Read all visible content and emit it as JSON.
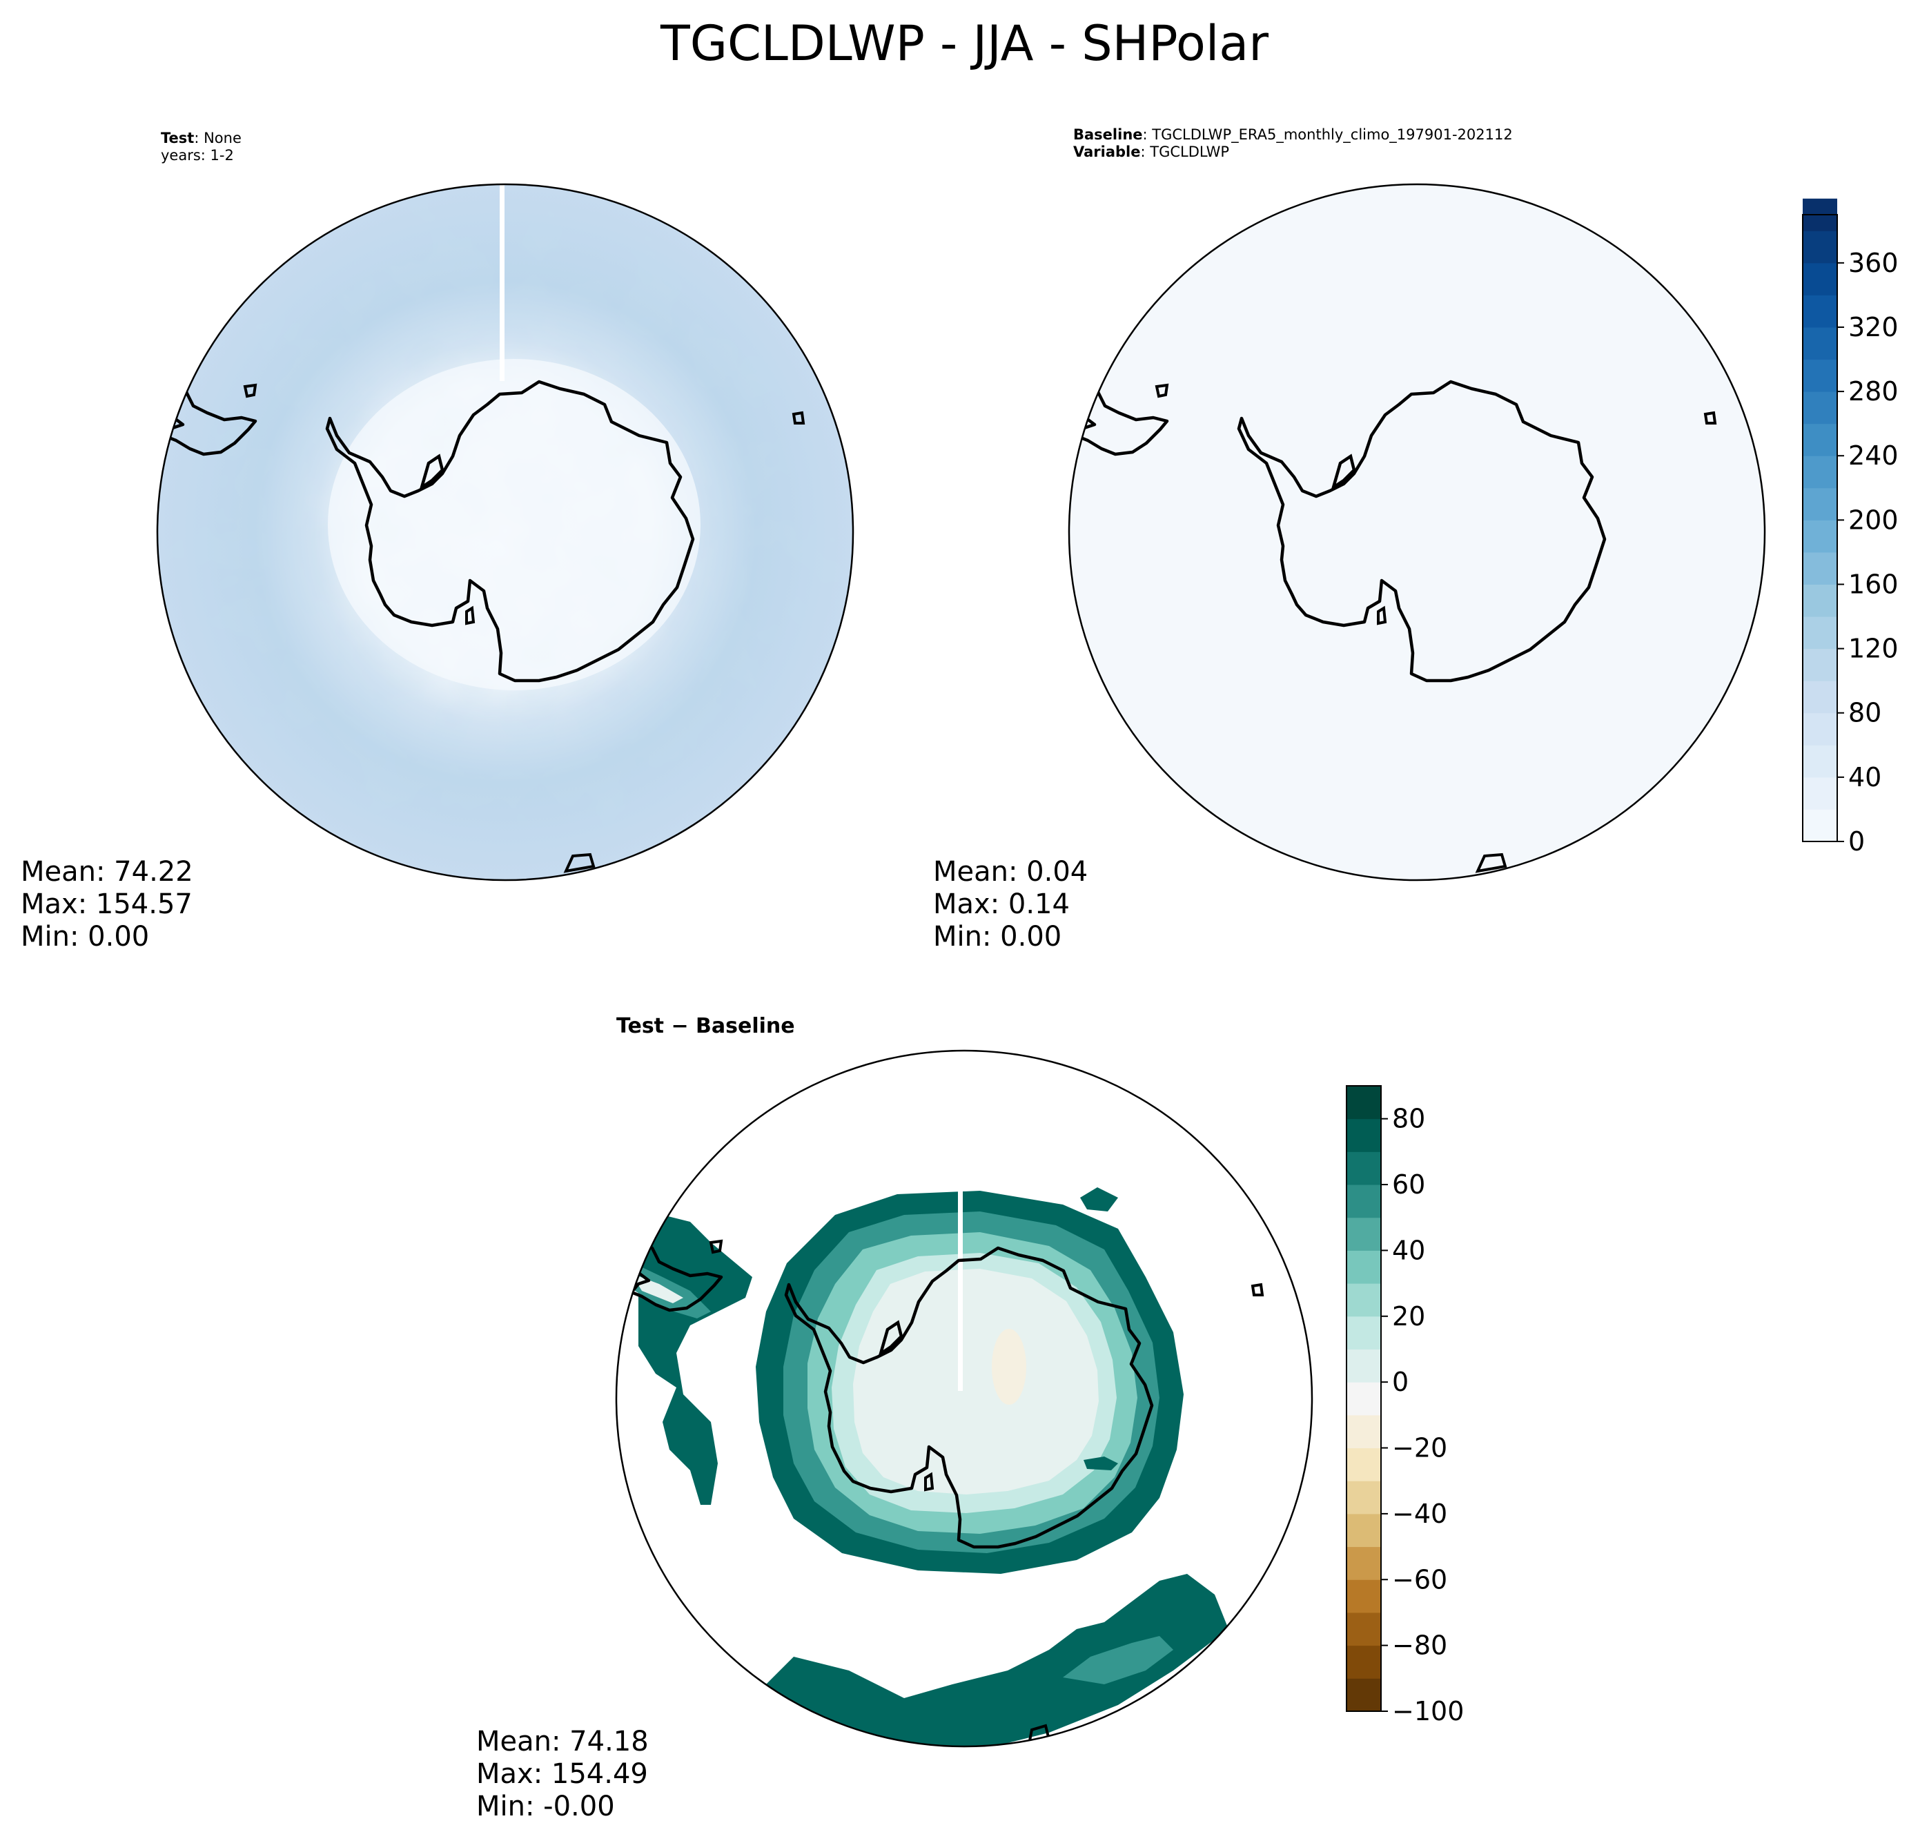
{
  "title": "TGCLDLWP - JJA - SHPolar",
  "panels": {
    "test": {
      "header": {
        "label": "Test",
        "value": "None",
        "line2": "years: 1-2"
      },
      "stats": {
        "mean": "Mean: 74.22",
        "max": "Max: 154.57",
        "min": "Min:  0.00"
      }
    },
    "baseline": {
      "header": {
        "label": "Baseline",
        "value": "TGCLDLWP_ERA5_monthly_climo_197901-202112",
        "label2": "Variable",
        "value2": "TGCLDLWP"
      },
      "stats": {
        "mean": "Mean:  0.04",
        "max": "Max:  0.14",
        "min": "Min:  0.00"
      }
    },
    "diff": {
      "title": "Test − Baseline",
      "stats": {
        "mean": "Mean: 74.18",
        "max": "Max: 154.49",
        "min": "Min: -0.00"
      }
    }
  },
  "colorbars": {
    "main": {
      "ticks": [
        "0",
        "40",
        "80",
        "120",
        "160",
        "200",
        "240",
        "280",
        "320",
        "360"
      ],
      "tick_values": [
        0,
        40,
        80,
        120,
        160,
        200,
        240,
        280,
        320,
        360
      ],
      "range": [
        0,
        390
      ],
      "colormap": "Blues"
    },
    "diff": {
      "ticks": [
        "−100",
        "−80",
        "−60",
        "−40",
        "−20",
        "0",
        "20",
        "40",
        "60",
        "80"
      ],
      "tick_values": [
        -100,
        -80,
        -60,
        -40,
        -20,
        0,
        20,
        40,
        60,
        80
      ],
      "range": [
        -100,
        90
      ],
      "colormap": "BrBG"
    }
  }
}
